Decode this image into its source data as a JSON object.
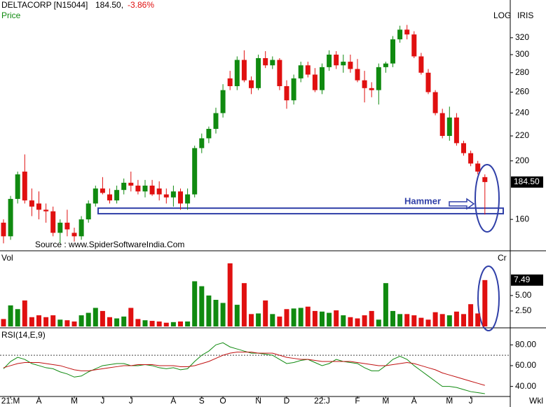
{
  "header": {
    "symbol": "DELTACORP [N15044]",
    "price": "184.50,",
    "change": "-3.86%",
    "panel": "Price",
    "scale": "LOG",
    "brand": "IRIS",
    "source": "Source : www.SpiderSoftwareIndia.Com",
    "volume_title": "Vol",
    "volume_unit": "Cr",
    "rsi_title": "RSI(14,E,9)",
    "period": "Wkl"
  },
  "chart_data": [
    {
      "type": "candlestick",
      "log_scale": true,
      "up_color": "#108a10",
      "down_color": "#e01010",
      "open": [
        158,
        150,
        173,
        192,
        172,
        170,
        166,
        165,
        152,
        158,
        152,
        150,
        160,
        170,
        180,
        176,
        172,
        179,
        184,
        182,
        178,
        182,
        180,
        176,
        174,
        178,
        170,
        176,
        210,
        218,
        226,
        240,
        274,
        266,
        294,
        272,
        264,
        296,
        288,
        294,
        266,
        252,
        274,
        288,
        278,
        262,
        286,
        300,
        288,
        292,
        284,
        272,
        264,
        262,
        286,
        290,
        318,
        330,
        324,
        298,
        280,
        260,
        240,
        220,
        236,
        214,
        206,
        198,
        188
      ],
      "high": [
        160,
        175,
        192,
        205,
        180,
        178,
        170,
        168,
        160,
        166,
        155,
        162,
        172,
        182,
        188,
        180,
        182,
        187,
        192,
        186,
        186,
        186,
        185,
        180,
        182,
        180,
        180,
        212,
        222,
        228,
        245,
        268,
        282,
        298,
        305,
        276,
        300,
        304,
        298,
        296,
        272,
        278,
        292,
        292,
        285,
        290,
        305,
        304,
        300,
        300,
        295,
        282,
        270,
        290,
        292,
        322,
        335,
        336,
        328,
        302,
        284,
        262,
        244,
        246,
        240,
        216,
        208,
        200,
        190
      ],
      "low": [
        146,
        148,
        170,
        170,
        162,
        160,
        158,
        150,
        146,
        150,
        147,
        148,
        158,
        168,
        176,
        170,
        170,
        176,
        178,
        176,
        174,
        175,
        172,
        170,
        168,
        166,
        166,
        174,
        206,
        214,
        222,
        236,
        262,
        262,
        270,
        258,
        262,
        285,
        284,
        262,
        244,
        248,
        270,
        275,
        260,
        258,
        282,
        284,
        280,
        280,
        270,
        250,
        255,
        248,
        280,
        286,
        314,
        318,
        296,
        278,
        258,
        238,
        218,
        216,
        212,
        204,
        196,
        190,
        163
      ],
      "close": [
        150,
        173,
        190,
        172,
        168,
        166,
        165,
        152,
        158,
        154,
        150,
        160,
        170,
        180,
        177,
        172,
        179,
        184,
        182,
        178,
        182,
        176,
        176,
        174,
        178,
        170,
        176,
        210,
        218,
        226,
        240,
        262,
        266,
        294,
        272,
        264,
        296,
        288,
        294,
        266,
        252,
        274,
        288,
        278,
        262,
        286,
        300,
        288,
        292,
        284,
        272,
        264,
        262,
        286,
        290,
        318,
        330,
        324,
        298,
        280,
        260,
        240,
        220,
        236,
        214,
        206,
        198,
        192,
        184.5
      ],
      "ylim": [
        145,
        355
      ],
      "yticks": [
        160,
        200,
        220,
        240,
        260,
        280,
        300,
        320
      ],
      "last_label": {
        "value": 184.5,
        "label": "184.50"
      },
      "annotation": {
        "text": "Hammer",
        "band": [
          163.5,
          167
        ],
        "color": "#3040a8"
      }
    },
    {
      "type": "bar",
      "colors_from_candles": true,
      "values": [
        1.2,
        3.4,
        2.8,
        4.2,
        1.5,
        1.8,
        1.5,
        1.8,
        1.1,
        1.0,
        0.8,
        1.8,
        2.2,
        3.0,
        2.5,
        1.5,
        1.3,
        1.6,
        3.0,
        1.2,
        1.0,
        0.9,
        0.8,
        0.6,
        0.7,
        0.8,
        0.8,
        7.3,
        6.5,
        5.0,
        4.3,
        3.8,
        10.2,
        3.5,
        7.0,
        2.0,
        2.1,
        4.2,
        2.0,
        1.6,
        2.8,
        2.9,
        3.0,
        3.2,
        2.5,
        2.4,
        2.2,
        2.6,
        1.8,
        1.5,
        1.3,
        1.8,
        2.5,
        1.1,
        7.0,
        2.5,
        2.0,
        2.0,
        1.8,
        1.4,
        1.1,
        2.3,
        2.0,
        1.8,
        2.4,
        2.0,
        3.6,
        2.1,
        7.49
      ],
      "ylim": [
        0,
        12
      ],
      "yticks": [
        {
          "value": 2.5,
          "label": "2.50"
        },
        {
          "value": 5,
          "label": "5.00"
        }
      ],
      "last_label": {
        "value": 7.49,
        "label": "7.49"
      }
    },
    {
      "type": "line",
      "categories": [
        null,
        "21:M",
        null,
        null,
        null,
        "A",
        null,
        null,
        null,
        null,
        "M",
        null,
        null,
        null,
        "J",
        null,
        null,
        null,
        "J",
        null,
        null,
        null,
        null,
        null,
        "A",
        null,
        null,
        null,
        "S",
        null,
        null,
        "O",
        null,
        null,
        null,
        null,
        "N",
        null,
        null,
        null,
        "D",
        null,
        null,
        null,
        null,
        "22:J",
        null,
        null,
        null,
        null,
        "F",
        null,
        null,
        null,
        "M",
        null,
        null,
        null,
        "A",
        null,
        null,
        null,
        null,
        "M",
        null,
        null,
        "J",
        null,
        null
      ],
      "series": [
        {
          "color": "#108a10",
          "values": [
            57,
            64,
            68,
            66,
            62,
            60,
            58,
            57,
            54,
            52,
            49,
            50,
            54,
            57,
            60,
            61,
            62,
            62,
            60,
            60,
            61,
            60,
            58,
            57,
            58,
            56,
            57,
            64,
            70,
            74,
            80,
            82,
            78,
            76,
            74,
            72,
            72,
            71,
            70,
            66,
            62,
            63,
            65,
            66,
            63,
            60,
            62,
            66,
            64,
            63,
            62,
            58,
            55,
            55,
            60,
            66,
            69,
            66,
            60,
            55,
            50,
            45,
            40,
            40,
            39,
            37,
            35,
            34,
            33
          ]
        },
        {
          "color": "#c01010",
          "values": [
            58,
            60,
            62,
            63,
            63,
            63,
            62,
            61,
            60,
            58,
            56,
            55,
            55,
            56,
            57,
            58,
            59,
            60,
            60,
            61,
            61,
            61,
            60,
            60,
            60,
            59,
            59,
            60,
            62,
            64,
            67,
            70,
            72,
            73,
            73,
            73,
            72,
            72,
            72,
            70,
            68,
            67,
            66,
            66,
            65,
            64,
            64,
            64,
            64,
            64,
            63,
            62,
            61,
            60,
            60,
            61,
            62,
            63,
            62,
            60,
            58,
            56,
            53,
            51,
            49,
            47,
            45,
            43,
            41
          ]
        }
      ],
      "level": 70,
      "ylim": [
        31,
        95
      ],
      "yticks": [
        {
          "value": 80,
          "label": "80.00"
        },
        {
          "value": 60,
          "label": "60.00"
        },
        {
          "value": 40,
          "label": "40.00"
        }
      ]
    }
  ]
}
